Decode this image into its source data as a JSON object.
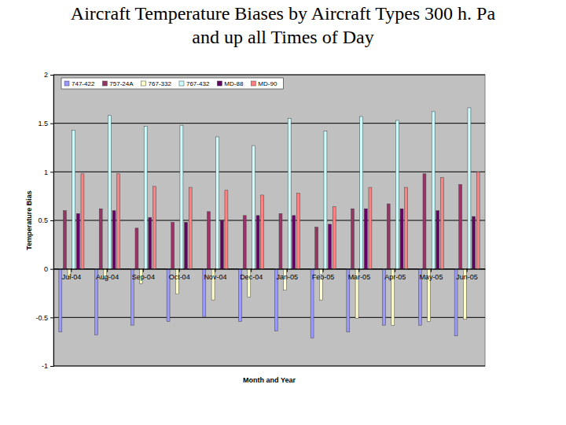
{
  "chart_data": {
    "type": "bar",
    "title": "Aircraft Temperature Biases by Aircraft Types 300 h. Pa and up all Times of Day",
    "x_label": "Month and Year",
    "y_label": "Temperature Bias",
    "categories": [
      "Jul-04",
      "Aug-04",
      "Sep-04",
      "Oct-04",
      "Nov-04",
      "Dec-04",
      "Jan-05",
      "Feb-05",
      "Mar-05",
      "Apr-05",
      "May-05",
      "Jun-05"
    ],
    "series": [
      {
        "name": "747-422",
        "color": "#9999ff",
        "values": [
          -0.65,
          -0.68,
          -0.58,
          -0.54,
          -0.49,
          -0.54,
          -0.64,
          -0.71,
          -0.65,
          -0.58,
          -0.58,
          -0.69
        ]
      },
      {
        "name": "757-24A",
        "color": "#993366",
        "values": [
          0.6,
          0.62,
          0.42,
          0.48,
          0.59,
          0.55,
          0.57,
          0.43,
          0.62,
          0.67,
          0.98,
          0.87
        ]
      },
      {
        "name": "767-332",
        "color": "#ffffcc",
        "values": [
          -0.08,
          -0.1,
          -0.15,
          -0.26,
          -0.32,
          -0.29,
          -0.22,
          -0.32,
          -0.51,
          -0.58,
          -0.54,
          -0.52
        ]
      },
      {
        "name": "767-432",
        "color": "#ccffff",
        "values": [
          1.43,
          1.58,
          1.47,
          1.48,
          1.36,
          1.27,
          1.55,
          1.42,
          1.57,
          1.53,
          1.62,
          1.66
        ]
      },
      {
        "name": "MD-88",
        "color": "#660066",
        "values": [
          0.57,
          0.6,
          0.53,
          0.48,
          0.5,
          0.55,
          0.55,
          0.46,
          0.62,
          0.62,
          0.6,
          0.54
        ]
      },
      {
        "name": "MD-90",
        "color": "#ff8080",
        "values": [
          0.98,
          0.98,
          0.85,
          0.84,
          0.81,
          0.76,
          0.78,
          0.64,
          0.84,
          0.84,
          0.94,
          1.0
        ]
      }
    ],
    "ylim": [
      -1,
      2
    ],
    "yticks": [
      -1,
      -0.5,
      0,
      0.5,
      1,
      1.5,
      2
    ],
    "grid": true,
    "legend": "top"
  }
}
